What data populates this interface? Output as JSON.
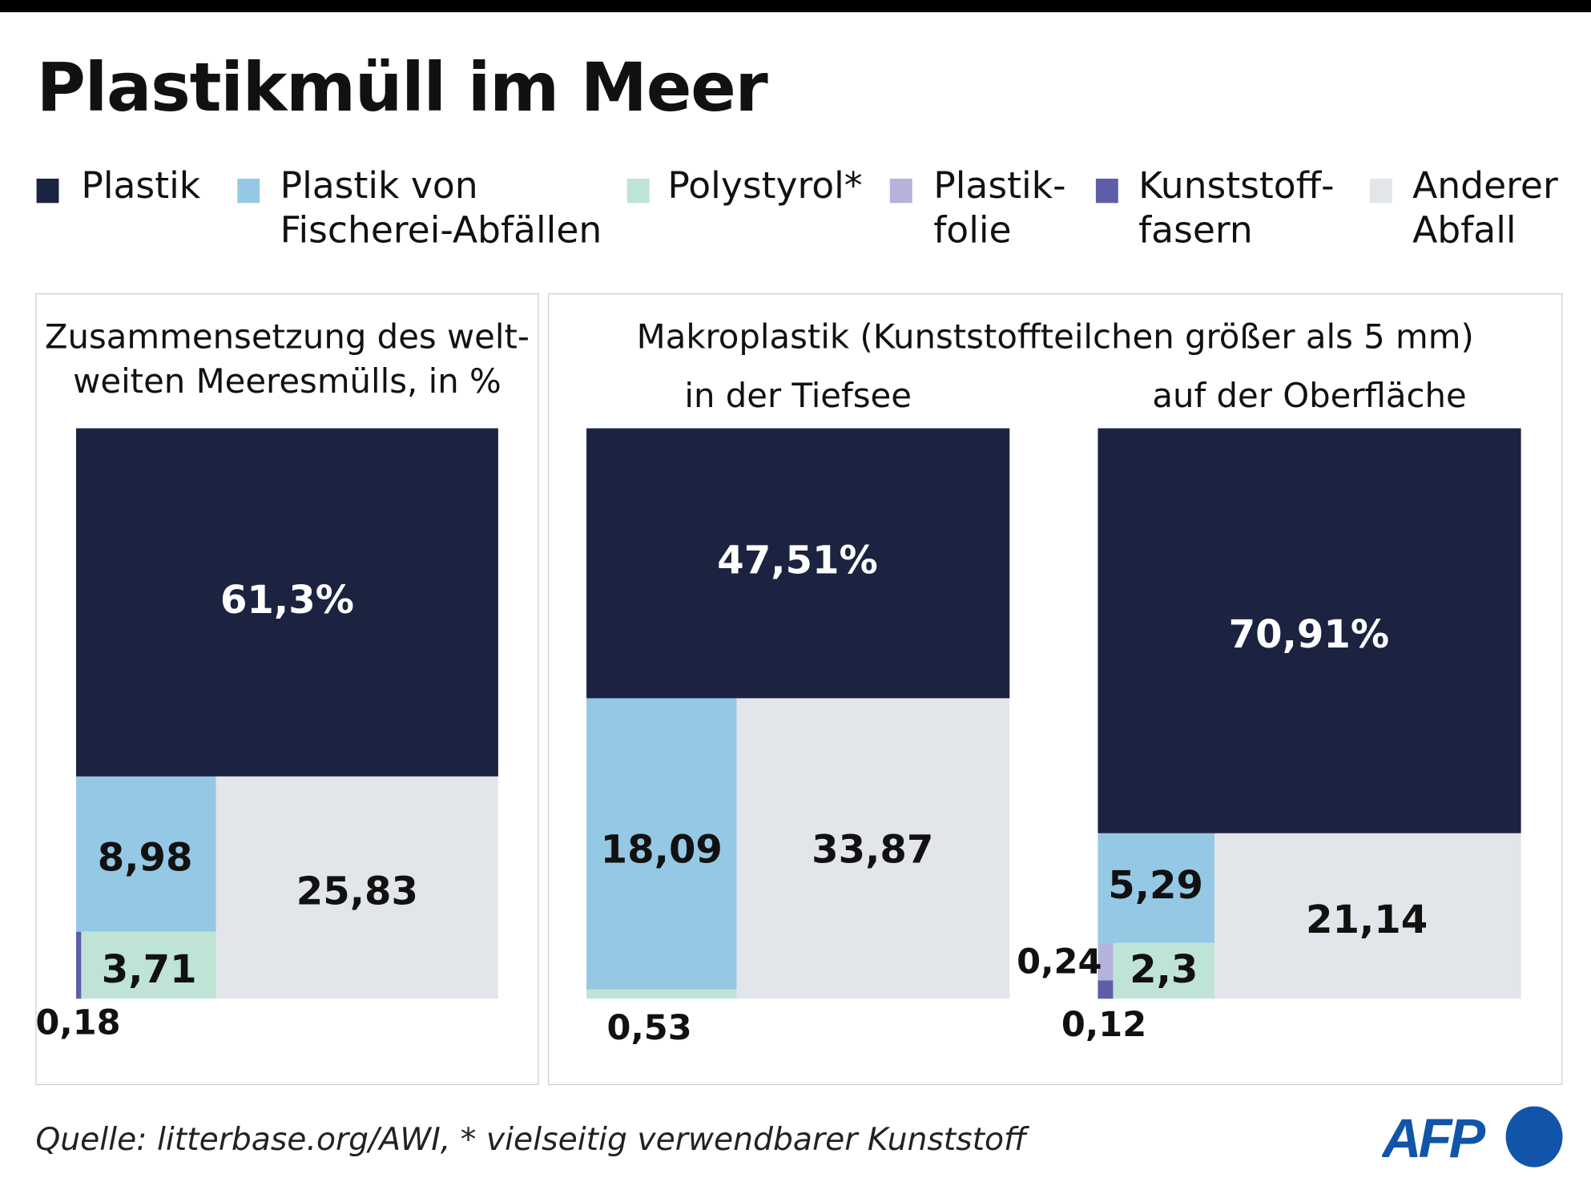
{
  "title": "Plastikmüll im Meer",
  "legend": [
    {
      "line1": "Plastik",
      "line2": "",
      "color": "#1b2341"
    },
    {
      "line1": "Plastik von",
      "line2": "Fischerei-Abfällen",
      "color": "#95c8e4"
    },
    {
      "line1": "Polystyrol*",
      "line2": "",
      "color": "#bfe3d5"
    },
    {
      "line1": "Plastik-",
      "line2": "folie",
      "color": "#b3b3dc"
    },
    {
      "line1": "Kunststoff-",
      "line2": "fasern",
      "color": "#5c5ea8"
    },
    {
      "line1": "Anderer",
      "line2": "Abfall",
      "color": "#e2e6ea"
    }
  ],
  "panels": {
    "left_title_1": "Zusammensetzung des welt-",
    "left_title_2": "weiten Meeresmülls, in %",
    "right_title": "Makroplastik (Kunststoffteilchen größer als 5 mm)",
    "sub_deep": "in der Tiefsee",
    "sub_surface": "auf der Oberfläche"
  },
  "chart_data": [
    {
      "type": "treemap",
      "title": "Zusammensetzung des weltweiten Meeresmülls, in %",
      "categories": [
        "Plastik",
        "Plastik von Fischerei-Abfällen",
        "Polystyrol*",
        "Plastikfolie",
        "Kunststofffasern",
        "Anderer Abfall"
      ],
      "values": [
        61.3,
        8.98,
        3.71,
        null,
        0.18,
        25.83
      ],
      "labels": [
        "61,3%",
        "8,98",
        "3,71",
        "",
        "0,18",
        "25,83"
      ]
    },
    {
      "type": "treemap",
      "title": "in der Tiefsee",
      "categories": [
        "Plastik",
        "Plastik von Fischerei-Abfällen",
        "Polystyrol*",
        "Plastikfolie",
        "Kunststofffasern",
        "Anderer Abfall"
      ],
      "values": [
        47.51,
        18.09,
        0.53,
        null,
        null,
        33.87
      ],
      "labels": [
        "47,51%",
        "18,09",
        "0,53",
        "",
        "",
        "33,87"
      ]
    },
    {
      "type": "treemap",
      "title": "auf der Oberfläche",
      "categories": [
        "Plastik",
        "Plastik von Fischerei-Abfällen",
        "Polystyrol*",
        "Plastikfolie",
        "Kunststofffasern",
        "Anderer Abfall"
      ],
      "values": [
        70.91,
        5.29,
        2.3,
        0.24,
        0.12,
        21.14
      ],
      "labels": [
        "70,91%",
        "5,29",
        "2,3",
        "0,24",
        "0,12",
        "21,14"
      ]
    }
  ],
  "footer": "Quelle: litterbase.org/AWI, * vielseitig verwendbarer Kunststoff",
  "logo": "AFP"
}
